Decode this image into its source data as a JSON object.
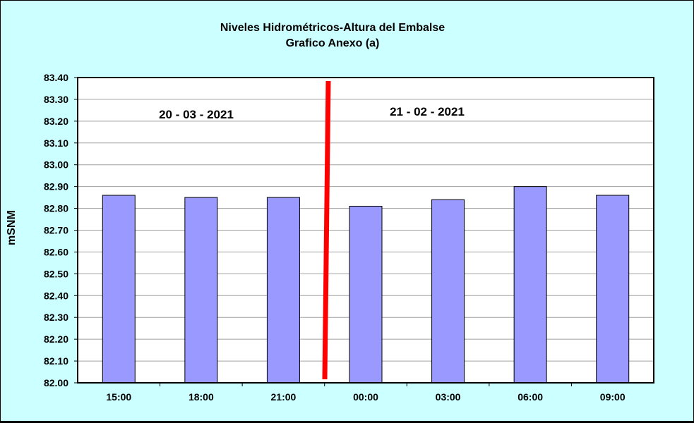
{
  "chart_data": {
    "type": "bar",
    "title": "Niveles Hidrométricos-Altura del Embalse",
    "subtitle": "Grafico Anexo (a)",
    "ylabel": "mSNM",
    "xlabel": "",
    "categories": [
      "15:00",
      "18:00",
      "21:00",
      "00:00",
      "03:00",
      "06:00",
      "09:00"
    ],
    "values": [
      82.86,
      82.85,
      82.85,
      82.81,
      82.84,
      82.9,
      82.86
    ],
    "ylim": [
      82.0,
      83.4
    ],
    "ytick_step": 0.1,
    "grid": true,
    "bar_color": "#9999ff",
    "divider_color": "#ff0000",
    "annotations": [
      {
        "text": "20 - 03 - 2021"
      },
      {
        "text": "21 - 02 - 2021"
      }
    ]
  }
}
